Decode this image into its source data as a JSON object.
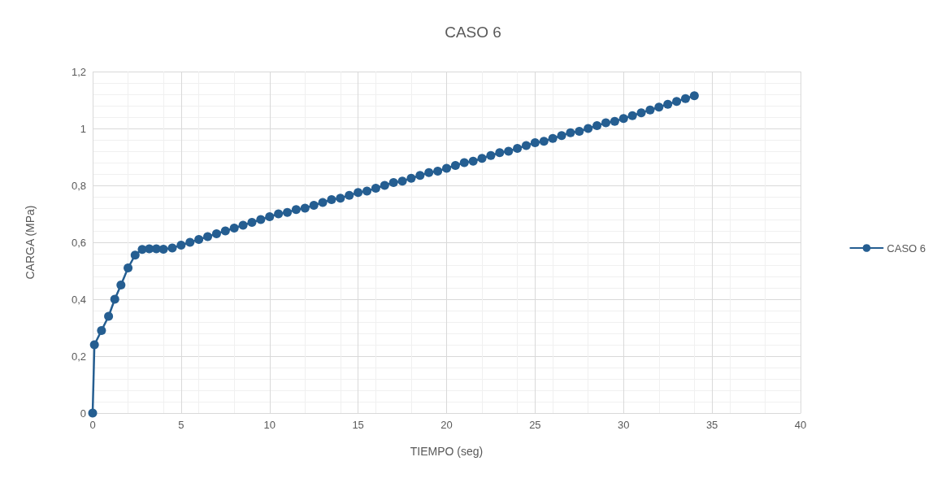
{
  "chart_data": {
    "type": "line",
    "title": "CASO 6",
    "xlabel": "TIEMPO (seg)",
    "ylabel": "CARGA (MPa)",
    "xlim": [
      0,
      40
    ],
    "xticks": [
      0,
      5,
      10,
      15,
      20,
      25,
      30,
      35,
      40
    ],
    "ylim": [
      0,
      1.2
    ],
    "yticks": [
      0,
      {
        "value": 0.2,
        "label": "0,2"
      },
      {
        "value": 0.4,
        "label": "0,4"
      },
      {
        "value": 0.6,
        "label": "0,6"
      },
      {
        "value": 0.8,
        "label": "0,8"
      },
      1,
      {
        "value": 1.2,
        "label": "1,2"
      }
    ],
    "grid": true,
    "legend": "right",
    "marker": "circle",
    "line_style": "solid",
    "series": [
      {
        "name": "CASO 6",
        "color": "#255e91",
        "x": [
          0,
          0.1,
          0.5,
          0.9,
          1.25,
          1.6,
          2,
          2.4,
          2.8,
          3.2,
          3.6,
          4,
          4.5,
          5,
          5.5,
          6,
          6.5,
          7,
          7.5,
          8,
          8.5,
          9,
          9.5,
          10,
          10.5,
          11,
          11.5,
          12,
          12.5,
          13,
          13.5,
          14,
          14.5,
          15,
          15.5,
          16,
          16.5,
          17,
          17.5,
          18,
          18.5,
          19,
          19.5,
          20,
          20.5,
          21,
          21.5,
          22,
          22.5,
          23,
          23.5,
          24,
          24.5,
          25,
          25.5,
          26,
          26.5,
          27,
          27.5,
          28,
          28.5,
          29,
          29.5,
          30,
          30.5,
          31,
          31.5,
          32,
          32.5,
          33,
          33.5,
          34
        ],
        "values": [
          0,
          0.24,
          0.29,
          0.34,
          0.4,
          0.45,
          0.51,
          0.555,
          0.575,
          0.577,
          0.577,
          0.576,
          0.58,
          0.59,
          0.6,
          0.61,
          0.62,
          0.63,
          0.64,
          0.65,
          0.66,
          0.67,
          0.68,
          0.69,
          0.7,
          0.705,
          0.715,
          0.72,
          0.73,
          0.74,
          0.75,
          0.755,
          0.765,
          0.775,
          0.78,
          0.79,
          0.8,
          0.81,
          0.815,
          0.825,
          0.835,
          0.845,
          0.85,
          0.86,
          0.87,
          0.88,
          0.885,
          0.895,
          0.905,
          0.915,
          0.92,
          0.93,
          0.94,
          0.95,
          0.955,
          0.965,
          0.975,
          0.985,
          0.99,
          1.0,
          1.01,
          1.02,
          1.025,
          1.035,
          1.045,
          1.055,
          1.065,
          1.075,
          1.085,
          1.095,
          1.105,
          1.115
        ]
      }
    ]
  }
}
